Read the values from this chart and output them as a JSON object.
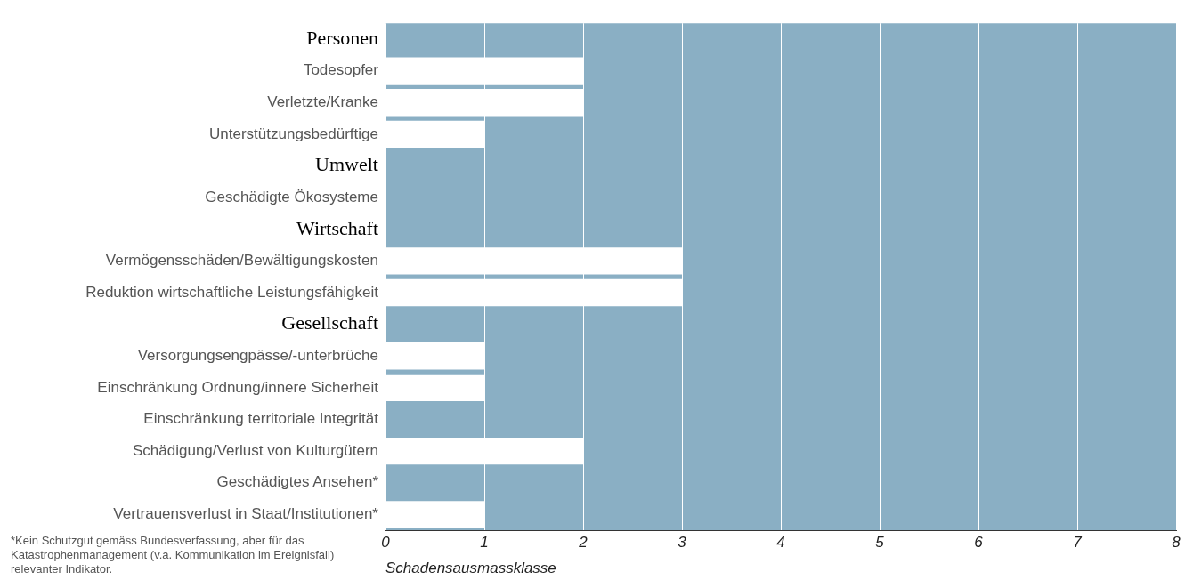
{
  "chart_data": {
    "type": "bar",
    "orientation": "horizontal",
    "categories": [
      "Personen",
      "Todesopfer",
      "Verletzte/Kranke",
      "Unterstützungsbedürftige",
      "Umwelt",
      "Geschädigte Ökosysteme",
      "Wirtschaft",
      "Vermögensschäden/Bewältigungskosten",
      "Reduktion wirtschaftliche Leistungsfähigkeit",
      "Gesellschaft",
      "Versorgungsengpässe/-unterbrüche",
      "Einschränkung Ordnung/innere Sicherheit",
      "Einschränkung territoriale Integrität",
      "Schädigung/Verlust von Kulturgütern",
      "Geschädigtes Ansehen*",
      "Vertrauensverlust in Staat/Institutionen*"
    ],
    "values": [
      null,
      2,
      2,
      1,
      null,
      0,
      null,
      3,
      3,
      null,
      1,
      1,
      0,
      2,
      0,
      1
    ],
    "color": "#ffffff",
    "xlim": [
      0,
      8
    ],
    "xticks": [
      0,
      1,
      2,
      3,
      4,
      5,
      6,
      7,
      8
    ],
    "xlabel": "Schadensausmassklasse",
    "grid": "x",
    "legend": false,
    "annotations": [
      "*Kein Schutzgut gemäss Bundesverfassung, aber für das Katastrophenmanagement (v.a. Kommunikation im Ereignisfall) relevanter Indikator."
    ]
  }
}
